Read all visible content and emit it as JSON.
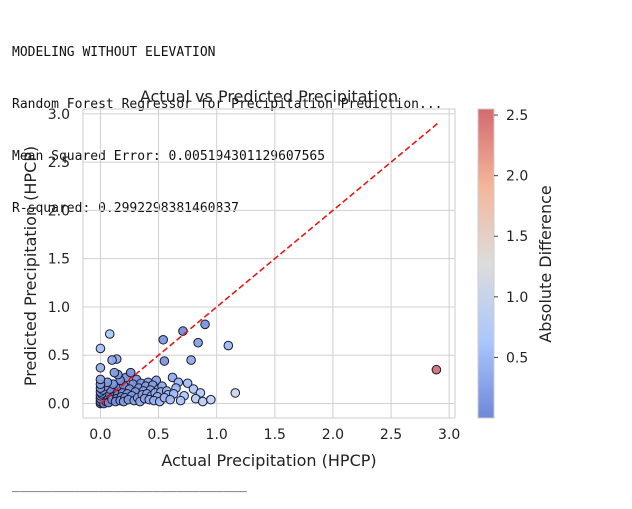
{
  "console": {
    "lines": [
      "MODELING WITHOUT ELEVATION",
      "Random Forest Regressor for Precipitation Prediction...",
      "Mean Squared Error: 0.005194301129607565",
      "R-squared: 0.2992298381460837"
    ],
    "separator": "______________________________"
  },
  "chart_data": {
    "type": "scatter",
    "title": "Actual vs Predicted Precipitation",
    "xlabel": "Actual Precipitation (HPCP)",
    "ylabel": "Predicted Precipitation (HPCP)",
    "xlim": [
      -0.15,
      3.05
    ],
    "ylim": [
      -0.15,
      3.05
    ],
    "xticks": [
      0.0,
      0.5,
      1.0,
      1.5,
      2.0,
      2.5,
      3.0
    ],
    "yticks": [
      0.0,
      0.5,
      1.0,
      1.5,
      2.0,
      2.5,
      3.0
    ],
    "grid": true,
    "reference_line": {
      "x": [
        0,
        2.9
      ],
      "y": [
        0,
        2.9
      ],
      "style": "dashed",
      "color": "#e41a1c"
    },
    "colorbar": {
      "label": "Absolute Difference",
      "cmap": "coolwarm",
      "range": [
        0.0,
        2.55
      ],
      "ticks": [
        0.5,
        1.0,
        1.5,
        2.0,
        2.5
      ]
    },
    "points": [
      {
        "x": 0.0,
        "y": 0.0
      },
      {
        "x": 0.0,
        "y": 0.02
      },
      {
        "x": 0.0,
        "y": 0.05
      },
      {
        "x": 0.0,
        "y": 0.08
      },
      {
        "x": 0.0,
        "y": 0.12
      },
      {
        "x": 0.0,
        "y": 0.16
      },
      {
        "x": 0.0,
        "y": 0.2
      },
      {
        "x": 0.0,
        "y": 0.25
      },
      {
        "x": 0.0,
        "y": 0.37
      },
      {
        "x": 0.0,
        "y": 0.57
      },
      {
        "x": 0.01,
        "y": 0.01
      },
      {
        "x": 0.01,
        "y": 0.04
      },
      {
        "x": 0.01,
        "y": 0.1
      },
      {
        "x": 0.02,
        "y": 0.02
      },
      {
        "x": 0.02,
        "y": 0.06
      },
      {
        "x": 0.02,
        "y": 0.14
      },
      {
        "x": 0.03,
        "y": 0.0
      },
      {
        "x": 0.03,
        "y": 0.03
      },
      {
        "x": 0.03,
        "y": 0.09
      },
      {
        "x": 0.04,
        "y": 0.05
      },
      {
        "x": 0.04,
        "y": 0.18
      },
      {
        "x": 0.05,
        "y": 0.02
      },
      {
        "x": 0.05,
        "y": 0.07
      },
      {
        "x": 0.05,
        "y": 0.12
      },
      {
        "x": 0.06,
        "y": 0.04
      },
      {
        "x": 0.06,
        "y": 0.22
      },
      {
        "x": 0.07,
        "y": 0.08
      },
      {
        "x": 0.07,
        "y": 0.01
      },
      {
        "x": 0.08,
        "y": 0.72
      },
      {
        "x": 0.08,
        "y": 0.06
      },
      {
        "x": 0.08,
        "y": 0.15
      },
      {
        "x": 0.09,
        "y": 0.03
      },
      {
        "x": 0.1,
        "y": 0.45
      },
      {
        "x": 0.1,
        "y": 0.1
      },
      {
        "x": 0.1,
        "y": 0.04
      },
      {
        "x": 0.11,
        "y": 0.2
      },
      {
        "x": 0.12,
        "y": 0.07
      },
      {
        "x": 0.12,
        "y": 0.32
      },
      {
        "x": 0.13,
        "y": 0.02
      },
      {
        "x": 0.13,
        "y": 0.13
      },
      {
        "x": 0.14,
        "y": 0.46
      },
      {
        "x": 0.14,
        "y": 0.05
      },
      {
        "x": 0.15,
        "y": 0.3
      },
      {
        "x": 0.15,
        "y": 0.09
      },
      {
        "x": 0.16,
        "y": 0.17
      },
      {
        "x": 0.17,
        "y": 0.03
      },
      {
        "x": 0.17,
        "y": 0.24
      },
      {
        "x": 0.18,
        "y": 0.07
      },
      {
        "x": 0.19,
        "y": 0.11
      },
      {
        "x": 0.2,
        "y": 0.02
      },
      {
        "x": 0.2,
        "y": 0.19
      },
      {
        "x": 0.21,
        "y": 0.06
      },
      {
        "x": 0.22,
        "y": 0.27
      },
      {
        "x": 0.23,
        "y": 0.1
      },
      {
        "x": 0.24,
        "y": 0.04
      },
      {
        "x": 0.25,
        "y": 0.15
      },
      {
        "x": 0.26,
        "y": 0.32
      },
      {
        "x": 0.27,
        "y": 0.08
      },
      {
        "x": 0.28,
        "y": 0.2
      },
      {
        "x": 0.29,
        "y": 0.03
      },
      {
        "x": 0.3,
        "y": 0.12
      },
      {
        "x": 0.31,
        "y": 0.25
      },
      {
        "x": 0.32,
        "y": 0.06
      },
      {
        "x": 0.33,
        "y": 0.16
      },
      {
        "x": 0.34,
        "y": 0.02
      },
      {
        "x": 0.35,
        "y": 0.21
      },
      {
        "x": 0.36,
        "y": 0.09
      },
      {
        "x": 0.37,
        "y": 0.13
      },
      {
        "x": 0.38,
        "y": 0.05
      },
      {
        "x": 0.39,
        "y": 0.18
      },
      {
        "x": 0.4,
        "y": 0.1
      },
      {
        "x": 0.41,
        "y": 0.22
      },
      {
        "x": 0.42,
        "y": 0.04
      },
      {
        "x": 0.43,
        "y": 0.14
      },
      {
        "x": 0.44,
        "y": 0.08
      },
      {
        "x": 0.45,
        "y": 0.19
      },
      {
        "x": 0.46,
        "y": 0.03
      },
      {
        "x": 0.47,
        "y": 0.11
      },
      {
        "x": 0.48,
        "y": 0.24
      },
      {
        "x": 0.49,
        "y": 0.07
      },
      {
        "x": 0.5,
        "y": 0.15
      },
      {
        "x": 0.51,
        "y": 0.02
      },
      {
        "x": 0.52,
        "y": 0.12
      },
      {
        "x": 0.53,
        "y": 0.18
      },
      {
        "x": 0.54,
        "y": 0.66
      },
      {
        "x": 0.55,
        "y": 0.44
      },
      {
        "x": 0.55,
        "y": 0.06
      },
      {
        "x": 0.57,
        "y": 0.13
      },
      {
        "x": 0.58,
        "y": 0.09
      },
      {
        "x": 0.6,
        "y": 0.04
      },
      {
        "x": 0.62,
        "y": 0.27
      },
      {
        "x": 0.63,
        "y": 0.1
      },
      {
        "x": 0.65,
        "y": 0.16
      },
      {
        "x": 0.67,
        "y": 0.22
      },
      {
        "x": 0.69,
        "y": 0.03
      },
      {
        "x": 0.71,
        "y": 0.75
      },
      {
        "x": 0.72,
        "y": 0.08
      },
      {
        "x": 0.75,
        "y": 0.21
      },
      {
        "x": 0.78,
        "y": 0.45
      },
      {
        "x": 0.8,
        "y": 0.15
      },
      {
        "x": 0.82,
        "y": 0.05
      },
      {
        "x": 0.84,
        "y": 0.63
      },
      {
        "x": 0.86,
        "y": 0.11
      },
      {
        "x": 0.88,
        "y": 0.02
      },
      {
        "x": 0.9,
        "y": 0.82
      },
      {
        "x": 0.95,
        "y": 0.04
      },
      {
        "x": 1.1,
        "y": 0.6
      },
      {
        "x": 1.16,
        "y": 0.11
      },
      {
        "x": 2.89,
        "y": 0.35
      }
    ]
  }
}
